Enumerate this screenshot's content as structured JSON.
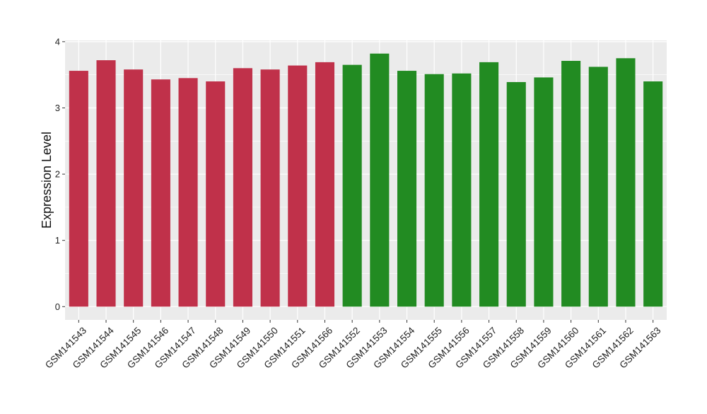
{
  "chart_data": {
    "type": "bar",
    "title": "",
    "xlabel": "",
    "ylabel": "Expression Level",
    "ylim": [
      -0.2,
      4.02
    ],
    "yticks": [
      0,
      1,
      2,
      3,
      4
    ],
    "grid": true,
    "legend": "none",
    "categories": [
      "GSM141543",
      "GSM141544",
      "GSM141545",
      "GSM141546",
      "GSM141547",
      "GSM141548",
      "GSM141549",
      "GSM141550",
      "GSM141551",
      "GSM141566",
      "GSM141552",
      "GSM141553",
      "GSM141554",
      "GSM141555",
      "GSM141556",
      "GSM141557",
      "GSM141558",
      "GSM141559",
      "GSM141560",
      "GSM141561",
      "GSM141562",
      "GSM141563"
    ],
    "values": [
      3.56,
      3.72,
      3.58,
      3.43,
      3.45,
      3.4,
      3.6,
      3.58,
      3.64,
      3.69,
      3.65,
      3.82,
      3.56,
      3.51,
      3.52,
      3.69,
      3.39,
      3.46,
      3.71,
      3.62,
      3.75,
      3.4
    ],
    "groups": [
      0,
      0,
      0,
      0,
      0,
      0,
      0,
      0,
      0,
      0,
      1,
      1,
      1,
      1,
      1,
      1,
      1,
      1,
      1,
      1,
      1,
      1
    ],
    "group_colors": [
      "#c0314a",
      "#228b22"
    ],
    "panel_color": "#ebebeb",
    "grid_color": "#ffffff"
  }
}
